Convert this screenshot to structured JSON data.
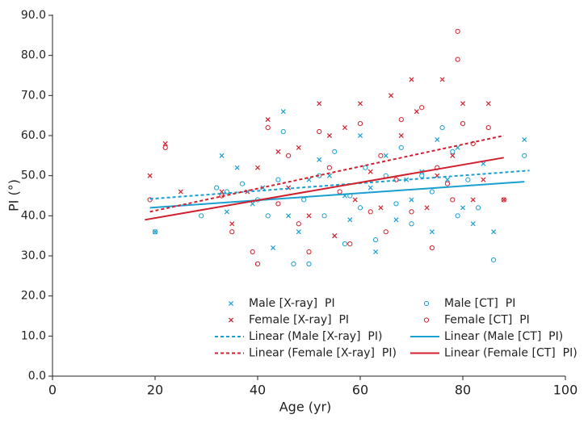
{
  "chart_data": {
    "type": "scatter",
    "x_label": "Age (yr)",
    "y_label": "PI (°)",
    "xlim": [
      0,
      100
    ],
    "xticks": [
      0,
      20,
      40,
      60,
      80,
      100
    ],
    "ylim": [
      0,
      90
    ],
    "yticks": [
      {
        "value": 0,
        "label": "0.0"
      },
      {
        "value": 10,
        "label": "10.0"
      },
      {
        "value": 20,
        "label": "20.0"
      },
      {
        "value": 30,
        "label": "30.0"
      },
      {
        "value": 40,
        "label": "40.0"
      },
      {
        "value": 50,
        "label": "50.0"
      },
      {
        "value": 60,
        "label": "60.0"
      },
      {
        "value": 70,
        "label": "70.0"
      },
      {
        "value": 80,
        "label": "80.0"
      },
      {
        "value": 90,
        "label": "90.0"
      }
    ],
    "grid": false,
    "series": [
      {
        "name": "Male [X-ray]  PI",
        "color": "#1a9fd0",
        "marker": "x",
        "x": [
          20,
          33,
          34,
          36,
          39,
          41,
          43,
          45,
          46,
          48,
          50,
          52,
          54,
          55,
          57,
          58,
          60,
          62,
          63,
          65,
          67,
          69,
          70,
          72,
          74,
          75,
          77,
          79,
          80,
          82,
          84,
          86,
          92
        ],
        "values": [
          36,
          55,
          41,
          52,
          43,
          47,
          32,
          66,
          40,
          36,
          49,
          54,
          50,
          35,
          45,
          39,
          60,
          47,
          31,
          55,
          39,
          49,
          44,
          51,
          36,
          59,
          49,
          57,
          42,
          38,
          53,
          36,
          59
        ]
      },
      {
        "name": "Male [CT]  PI",
        "color": "#1a9fd0",
        "marker": "o",
        "x": [
          20,
          29,
          32,
          34,
          37,
          40,
          42,
          44,
          45,
          47,
          49,
          50,
          52,
          53,
          55,
          57,
          58,
          60,
          61,
          63,
          65,
          67,
          68,
          70,
          72,
          74,
          76,
          78,
          79,
          81,
          83,
          86,
          92
        ],
        "values": [
          36,
          40,
          47,
          46,
          48,
          44,
          40,
          49,
          61,
          28,
          44,
          28,
          50,
          40,
          56,
          33,
          45,
          42,
          52,
          34,
          50,
          43,
          57,
          38,
          50,
          46,
          62,
          56,
          40,
          49,
          42,
          29,
          55
        ]
      },
      {
        "name": "Female [X-ray]  PI",
        "color": "#d0202e",
        "marker": "x",
        "x": [
          19,
          22,
          25,
          33,
          35,
          38,
          40,
          42,
          44,
          46,
          48,
          50,
          52,
          54,
          55,
          57,
          59,
          60,
          62,
          64,
          66,
          68,
          70,
          71,
          73,
          75,
          76,
          78,
          80,
          82,
          84,
          85,
          88
        ],
        "values": [
          50,
          58,
          46,
          46,
          38,
          46,
          52,
          64,
          56,
          47,
          57,
          40,
          68,
          60,
          35,
          62,
          44,
          68,
          51,
          42,
          70,
          60,
          74,
          66,
          42,
          50,
          74,
          55,
          68,
          44,
          49,
          68,
          44
        ]
      },
      {
        "name": "Female [CT]  PI",
        "color": "#d0202e",
        "marker": "o",
        "x": [
          19,
          22,
          33,
          35,
          39,
          40,
          42,
          44,
          46,
          48,
          50,
          52,
          54,
          56,
          58,
          60,
          62,
          64,
          65,
          67,
          68,
          70,
          72,
          74,
          75,
          77,
          78,
          79,
          79,
          80,
          82,
          85,
          88
        ],
        "values": [
          44,
          57,
          45,
          36,
          31,
          28,
          62,
          43,
          55,
          38,
          31,
          61,
          52,
          46,
          33,
          63,
          41,
          55,
          36,
          49,
          64,
          41,
          67,
          32,
          52,
          48,
          44,
          86,
          79,
          63,
          58,
          62,
          44
        ]
      },
      {
        "name": "Linear (Male [X-ray]  PI)",
        "color": "#1a9fd0",
        "style": "dashed",
        "x": [
          19,
          93
        ],
        "values": [
          44.2,
          51.3
        ]
      },
      {
        "name": "Linear (Male [CT]  PI)",
        "color": "#1a9fd0",
        "style": "solid",
        "x": [
          19,
          92
        ],
        "values": [
          42,
          48.5
        ]
      },
      {
        "name": "Linear (Female [X-ray]  PI)",
        "color": "#d0202e",
        "style": "dashed",
        "x": [
          19,
          88
        ],
        "values": [
          41,
          60
        ]
      },
      {
        "name": "Linear (Female [CT]  PI)",
        "color": "#d0202e",
        "style": "solid",
        "x": [
          18,
          88
        ],
        "values": [
          39,
          54.5
        ]
      }
    ]
  }
}
